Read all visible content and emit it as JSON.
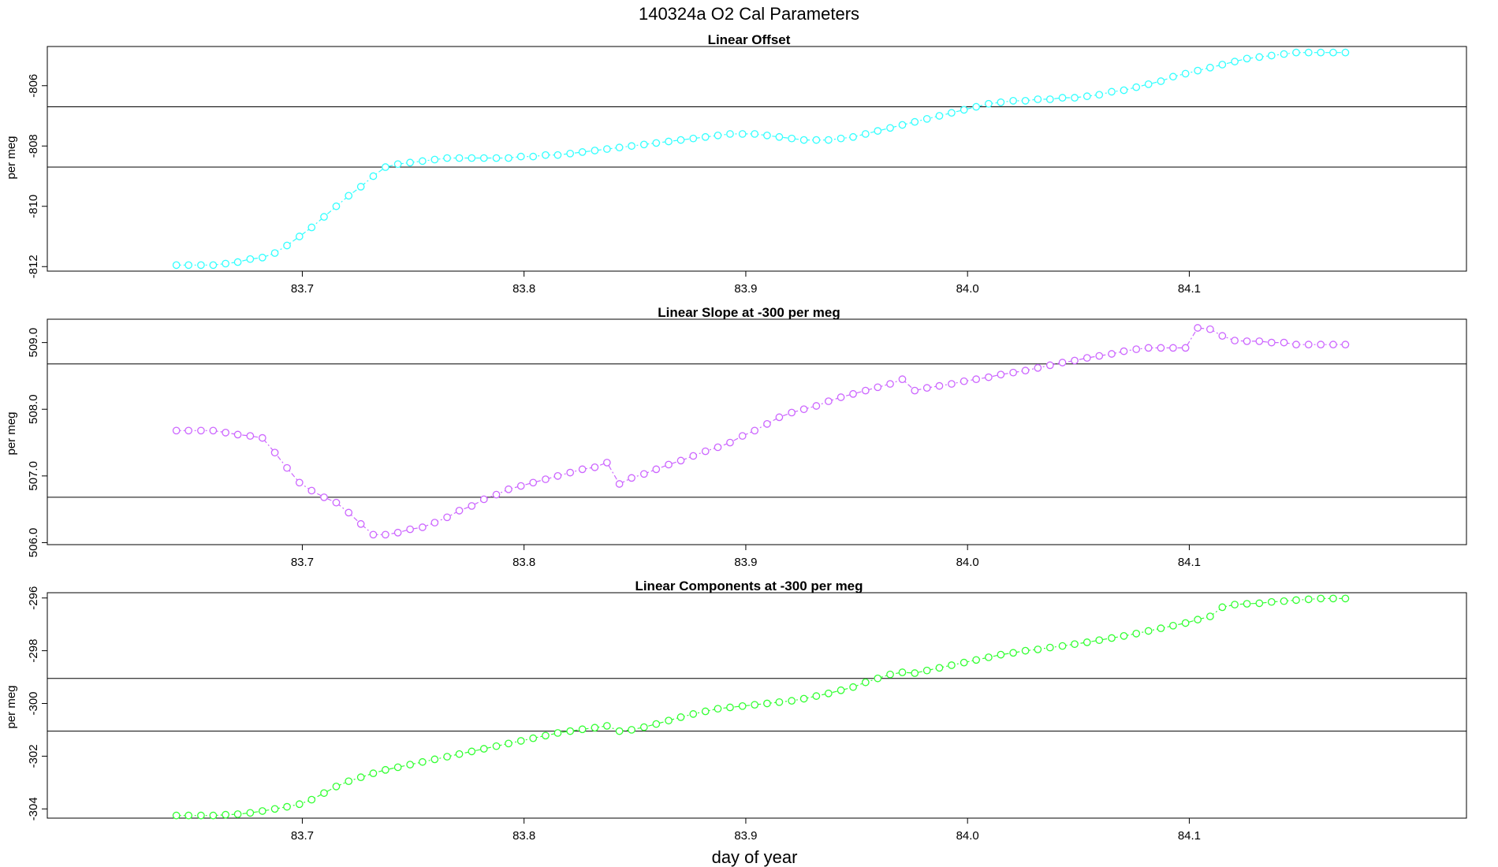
{
  "title": "140324a   O2 Cal Parameters",
  "xlabel": "day of year",
  "chart_data": [
    {
      "type": "scatter",
      "title": "Linear Offset",
      "ylabel": "per meg",
      "color": "#33ffff",
      "xlim": [
        83.585,
        84.225
      ],
      "ylim": [
        -812.15,
        -804.7
      ],
      "xticks": [
        83.7,
        83.8,
        83.9,
        84.0,
        84.1
      ],
      "yticks": [
        -806,
        -808,
        -810,
        -812
      ],
      "hlines": [
        -806.7,
        -808.7
      ],
      "x": [
        83.6432,
        83.6487,
        83.6543,
        83.6598,
        83.6654,
        83.6709,
        83.6765,
        83.682,
        83.6876,
        83.6931,
        83.6987,
        83.7042,
        83.7098,
        83.7153,
        83.7209,
        83.7264,
        83.732,
        83.7375,
        83.7431,
        83.7486,
        83.7542,
        83.7597,
        83.7653,
        83.7708,
        83.7764,
        83.7819,
        83.7875,
        83.793,
        83.7986,
        83.8041,
        83.8097,
        83.8152,
        83.8208,
        83.8263,
        83.8319,
        83.8374,
        83.843,
        83.8485,
        83.8541,
        83.8596,
        83.8652,
        83.8707,
        83.8763,
        83.8818,
        83.8874,
        83.8929,
        83.8985,
        83.904,
        83.9096,
        83.9151,
        83.9207,
        83.9262,
        83.9318,
        83.9373,
        83.9429,
        83.9484,
        83.954,
        83.9595,
        83.9651,
        83.9706,
        83.9762,
        83.9817,
        83.9873,
        83.9928,
        83.9984,
        84.0039,
        84.0095,
        84.015,
        84.0206,
        84.0261,
        84.0317,
        84.0372,
        84.0428,
        84.0483,
        84.0539,
        84.0594,
        84.065,
        84.0705,
        84.0761,
        84.0816,
        84.0872,
        84.0927,
        84.0983,
        84.1038,
        84.1094,
        84.1149,
        84.1205,
        84.126,
        84.1316,
        84.1371,
        84.1427,
        84.1482,
        84.1538,
        84.1593,
        84.1649,
        84.1704
      ],
      "y": [
        -811.95,
        -811.95,
        -811.95,
        -811.95,
        -811.9,
        -811.85,
        -811.75,
        -811.7,
        -811.55,
        -811.3,
        -811.0,
        -810.7,
        -810.35,
        -810.0,
        -809.65,
        -809.35,
        -809.0,
        -808.7,
        -808.6,
        -808.55,
        -808.5,
        -808.45,
        -808.4,
        -808.4,
        -808.4,
        -808.4,
        -808.4,
        -808.4,
        -808.35,
        -808.35,
        -808.3,
        -808.3,
        -808.25,
        -808.2,
        -808.15,
        -808.1,
        -808.05,
        -808.0,
        -807.95,
        -807.9,
        -807.85,
        -807.8,
        -807.75,
        -807.7,
        -807.65,
        -807.6,
        -807.6,
        -807.6,
        -807.65,
        -807.7,
        -807.75,
        -807.8,
        -807.8,
        -807.8,
        -807.75,
        -807.7,
        -807.6,
        -807.5,
        -807.4,
        -807.3,
        -807.2,
        -807.1,
        -807.0,
        -806.9,
        -806.8,
        -806.7,
        -806.6,
        -806.55,
        -806.5,
        -806.5,
        -806.45,
        -806.45,
        -806.4,
        -806.4,
        -806.35,
        -806.3,
        -806.2,
        -806.15,
        -806.05,
        -805.95,
        -805.85,
        -805.7,
        -805.6,
        -805.5,
        -805.4,
        -805.3,
        -805.2,
        -805.1,
        -805.05,
        -805.0,
        -804.95,
        -804.9,
        -804.9,
        -804.9,
        -804.9,
        -804.9
      ]
    },
    {
      "type": "scatter",
      "title": "Linear Slope at -300 per meg",
      "ylabel": "per meg",
      "color": "#cc66ff",
      "xlim": [
        83.585,
        84.225
      ],
      "ylim": [
        505.97,
        509.35
      ],
      "xticks": [
        83.7,
        83.8,
        83.9,
        84.0,
        84.1
      ],
      "yticks": [
        506.0,
        507.0,
        508.0,
        509.0
      ],
      "hlines": [
        508.68,
        506.68
      ],
      "x": [
        83.6432,
        83.6487,
        83.6543,
        83.6598,
        83.6654,
        83.6709,
        83.6765,
        83.682,
        83.6876,
        83.6931,
        83.6987,
        83.7042,
        83.7098,
        83.7153,
        83.7209,
        83.7264,
        83.732,
        83.7375,
        83.7431,
        83.7486,
        83.7542,
        83.7597,
        83.7653,
        83.7708,
        83.7764,
        83.7819,
        83.7875,
        83.793,
        83.7986,
        83.8041,
        83.8097,
        83.8152,
        83.8208,
        83.8263,
        83.8319,
        83.8374,
        83.843,
        83.8485,
        83.8541,
        83.8596,
        83.8652,
        83.8707,
        83.8763,
        83.8818,
        83.8874,
        83.8929,
        83.8985,
        83.904,
        83.9096,
        83.9151,
        83.9207,
        83.9262,
        83.9318,
        83.9373,
        83.9429,
        83.9484,
        83.954,
        83.9595,
        83.9651,
        83.9706,
        83.9762,
        83.9817,
        83.9873,
        83.9928,
        83.9984,
        84.0039,
        84.0095,
        84.015,
        84.0206,
        84.0261,
        84.0317,
        84.0372,
        84.0428,
        84.0483,
        84.0539,
        84.0594,
        84.065,
        84.0705,
        84.0761,
        84.0816,
        84.0872,
        84.0927,
        84.0983,
        84.1038,
        84.1094,
        84.1149,
        84.1205,
        84.126,
        84.1316,
        84.1371,
        84.1427,
        84.1482,
        84.1538,
        84.1593,
        84.1649,
        84.1704
      ],
      "y": [
        507.68,
        507.68,
        507.68,
        507.68,
        507.65,
        507.62,
        507.6,
        507.57,
        507.35,
        507.12,
        506.9,
        506.78,
        506.68,
        506.6,
        506.45,
        506.28,
        506.12,
        506.12,
        506.15,
        506.2,
        506.23,
        506.3,
        506.38,
        506.48,
        506.55,
        506.65,
        506.72,
        506.8,
        506.85,
        506.9,
        506.95,
        507.0,
        507.05,
        507.1,
        507.13,
        507.2,
        506.88,
        506.97,
        507.03,
        507.1,
        507.17,
        507.23,
        507.3,
        507.37,
        507.43,
        507.5,
        507.6,
        507.68,
        507.78,
        507.88,
        507.95,
        508.0,
        508.05,
        508.12,
        508.18,
        508.23,
        508.28,
        508.33,
        508.38,
        508.45,
        508.28,
        508.32,
        508.35,
        508.38,
        508.42,
        508.45,
        508.48,
        508.52,
        508.55,
        508.58,
        508.62,
        508.66,
        508.7,
        508.73,
        508.77,
        508.8,
        508.83,
        508.87,
        508.9,
        508.92,
        508.92,
        508.92,
        508.92,
        509.22,
        509.2,
        509.1,
        509.03,
        509.02,
        509.02,
        509.0,
        509.0,
        508.97,
        508.97,
        508.97,
        508.97,
        508.97
      ]
    },
    {
      "type": "scatter",
      "title": "Linear Components at -300 per meg",
      "ylabel": "per meg",
      "color": "#33ff33",
      "xlim": [
        83.585,
        84.225
      ],
      "ylim": [
        -304.35,
        -295.8
      ],
      "xticks": [
        83.7,
        83.8,
        83.9,
        84.0,
        84.1
      ],
      "yticks": [
        -296,
        -298,
        -300,
        -302,
        -304
      ],
      "hlines": [
        -299.05,
        -301.05
      ],
      "x": [
        83.6432,
        83.6487,
        83.6543,
        83.6598,
        83.6654,
        83.6709,
        83.6765,
        83.682,
        83.6876,
        83.6931,
        83.6987,
        83.7042,
        83.7098,
        83.7153,
        83.7209,
        83.7264,
        83.732,
        83.7375,
        83.7431,
        83.7486,
        83.7542,
        83.7597,
        83.7653,
        83.7708,
        83.7764,
        83.7819,
        83.7875,
        83.793,
        83.7986,
        83.8041,
        83.8097,
        83.8152,
        83.8208,
        83.8263,
        83.8319,
        83.8374,
        83.843,
        83.8485,
        83.8541,
        83.8596,
        83.8652,
        83.8707,
        83.8763,
        83.8818,
        83.8874,
        83.8929,
        83.8985,
        83.904,
        83.9096,
        83.9151,
        83.9207,
        83.9262,
        83.9318,
        83.9373,
        83.9429,
        83.9484,
        83.954,
        83.9595,
        83.9651,
        83.9706,
        83.9762,
        83.9817,
        83.9873,
        83.9928,
        83.9984,
        84.0039,
        84.0095,
        84.015,
        84.0206,
        84.0261,
        84.0317,
        84.0372,
        84.0428,
        84.0483,
        84.0539,
        84.0594,
        84.065,
        84.0705,
        84.0761,
        84.0816,
        84.0872,
        84.0927,
        84.0983,
        84.1038,
        84.1094,
        84.1149,
        84.1205,
        84.126,
        84.1316,
        84.1371,
        84.1427,
        84.1482,
        84.1538,
        84.1593,
        84.1649,
        84.1704
      ],
      "y": [
        -304.25,
        -304.25,
        -304.25,
        -304.25,
        -304.22,
        -304.2,
        -304.15,
        -304.08,
        -304.0,
        -303.92,
        -303.82,
        -303.65,
        -303.4,
        -303.15,
        -302.95,
        -302.8,
        -302.65,
        -302.52,
        -302.42,
        -302.32,
        -302.22,
        -302.12,
        -302.02,
        -301.92,
        -301.82,
        -301.72,
        -301.62,
        -301.52,
        -301.42,
        -301.32,
        -301.22,
        -301.12,
        -301.05,
        -300.98,
        -300.92,
        -300.85,
        -301.05,
        -301.0,
        -300.9,
        -300.78,
        -300.65,
        -300.52,
        -300.4,
        -300.3,
        -300.2,
        -300.15,
        -300.1,
        -300.05,
        -300.0,
        -299.95,
        -299.9,
        -299.82,
        -299.72,
        -299.62,
        -299.5,
        -299.38,
        -299.2,
        -299.05,
        -298.9,
        -298.82,
        -298.85,
        -298.75,
        -298.65,
        -298.55,
        -298.45,
        -298.35,
        -298.25,
        -298.15,
        -298.08,
        -298.0,
        -297.95,
        -297.88,
        -297.82,
        -297.75,
        -297.68,
        -297.6,
        -297.52,
        -297.44,
        -297.35,
        -297.25,
        -297.15,
        -297.05,
        -296.95,
        -296.82,
        -296.7,
        -296.35,
        -296.25,
        -296.22,
        -296.2,
        -296.15,
        -296.12,
        -296.08,
        -296.05,
        -296.02,
        -296.02,
        -296.02
      ]
    }
  ]
}
